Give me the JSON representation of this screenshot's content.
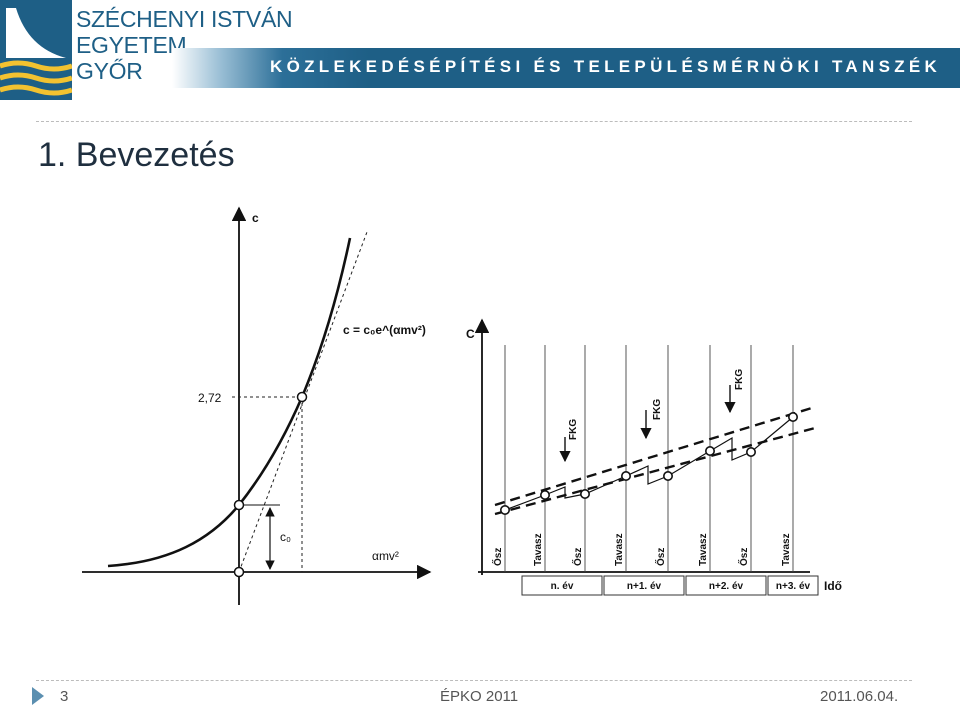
{
  "header": {
    "university_lines": [
      "SZÉCHENYI ISTVÁN",
      "EGYETEM",
      "GYŐR"
    ],
    "department": "KÖZLEKEDÉSÉPÍTÉSI ÉS TELEPÜLÉSMÉRNÖKI TANSZÉK",
    "logo_icon": "bridge-logo-icon"
  },
  "slide": {
    "title": "1. Bevezetés"
  },
  "left_diagram": {
    "y_axis_label": "c",
    "x_axis_label": "αmv²",
    "value_label": "2,72",
    "c0_label": "c₀",
    "formula": "c = c₀e^(αmv²)"
  },
  "right_diagram": {
    "y_axis_label": "C",
    "x_axis_label": "Idő",
    "fkg_label": "FKG",
    "seasons": [
      "Ősz",
      "Tavasz",
      "Ősz",
      "Tavasz",
      "Ősz",
      "Tavasz",
      "Ősz",
      "Tavasz"
    ],
    "years": [
      "n. év",
      "n+1. év",
      "n+2. év",
      "n+3. év"
    ]
  },
  "footer": {
    "page_number": "3",
    "event": "ÉPKO 2011",
    "date": "2011.06.04."
  },
  "colors": {
    "brand": "#1e5f86",
    "accent": "#5b8fb0"
  }
}
